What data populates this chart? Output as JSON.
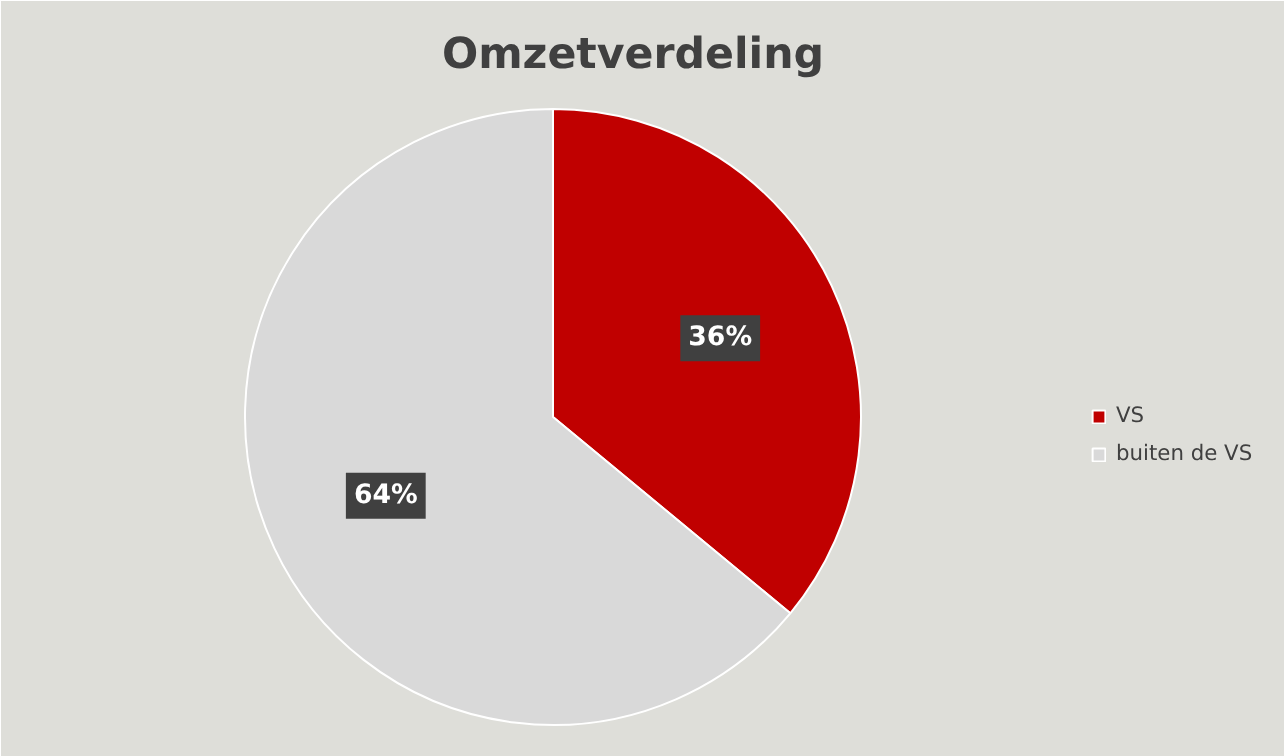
{
  "chart_data": {
    "type": "pie",
    "title": "Omzetverdeling",
    "categories": [
      "VS",
      "buiten de VS"
    ],
    "values": [
      36,
      64
    ],
    "colors": [
      "#c00000",
      "#d9d9d9"
    ],
    "value_labels": [
      "36%",
      "64%"
    ],
    "legend": "right"
  }
}
